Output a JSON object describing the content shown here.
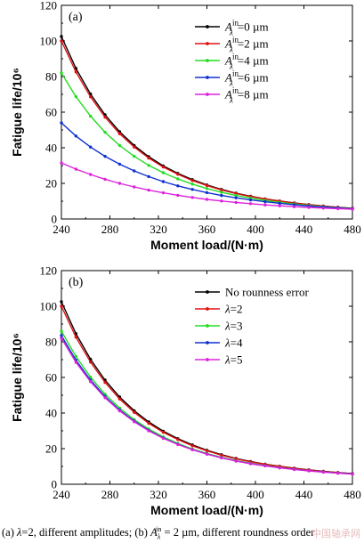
{
  "chart_data": [
    {
      "type": "line",
      "panel_label": "(a)",
      "xlabel": "Moment load/(N·m)",
      "ylabel": "Fatigue life/10⁶",
      "xlim": [
        240,
        480
      ],
      "ylim": [
        0,
        120
      ],
      "xticks": [
        240,
        280,
        320,
        360,
        400,
        440,
        480
      ],
      "yticks": [
        0,
        20,
        40,
        60,
        80,
        100,
        120
      ],
      "grid": false,
      "legend_position": "top-right",
      "x": [
        240,
        252,
        264,
        276,
        288,
        300,
        312,
        324,
        336,
        348,
        360,
        372,
        384,
        396,
        408,
        420,
        432,
        444,
        456,
        468,
        480
      ],
      "series": [
        {
          "name": "Aλin=0 µm",
          "legend_symbol": "A",
          "legend_sub": "λ",
          "legend_sup": "in",
          "legend_value": "=0 µm",
          "color": "#000000",
          "values": [
            102.5,
            84.6,
            70.2,
            58.5,
            49.0,
            41.3,
            35.0,
            29.8,
            25.6,
            22.1,
            19.1,
            16.6,
            14.5,
            12.8,
            11.3,
            10.1,
            9.0,
            8.1,
            7.3,
            6.6,
            6.0
          ]
        },
        {
          "name": "Aλin=2 µm",
          "legend_symbol": "A",
          "legend_sub": "λ",
          "legend_sup": "in",
          "legend_value": "=2 µm",
          "color": "#e01010",
          "values": [
            100.0,
            82.6,
            68.6,
            57.2,
            47.9,
            40.4,
            34.2,
            29.2,
            25.1,
            21.6,
            18.8,
            16.3,
            14.3,
            12.6,
            11.2,
            10.0,
            8.9,
            8.0,
            7.2,
            6.5,
            5.9
          ]
        },
        {
          "name": "Aλin=4 µm",
          "legend_symbol": "A",
          "legend_sub": "λ",
          "legend_sup": "in",
          "legend_value": "=4 µm",
          "color": "#22dd22",
          "values": [
            82.0,
            68.7,
            57.8,
            48.7,
            41.3,
            35.2,
            30.1,
            26.0,
            22.5,
            19.6,
            17.1,
            15.0,
            13.2,
            11.7,
            10.4,
            9.3,
            8.4,
            7.6,
            6.9,
            6.3,
            5.8
          ]
        },
        {
          "name": "Aλin=6 µm",
          "legend_symbol": "A",
          "legend_sub": "λ",
          "legend_sup": "in",
          "legend_value": "=6 µm",
          "color": "#1030d0",
          "values": [
            54.0,
            46.6,
            40.4,
            35.2,
            30.8,
            27.0,
            23.8,
            21.0,
            18.6,
            16.6,
            14.8,
            13.2,
            11.9,
            10.7,
            9.7,
            8.8,
            8.0,
            7.3,
            6.7,
            6.2,
            5.7
          ]
        },
        {
          "name": "Aλin=8 µm",
          "legend_symbol": "A",
          "legend_sub": "λ",
          "legend_sup": "in",
          "legend_value": "=8 µm",
          "color": "#dd22dd",
          "values": [
            31.5,
            28.0,
            25.0,
            22.3,
            20.0,
            18.0,
            16.2,
            14.7,
            13.3,
            12.1,
            11.0,
            10.1,
            9.3,
            8.6,
            7.9,
            7.4,
            6.9,
            6.5,
            6.1,
            5.8,
            5.5
          ]
        }
      ]
    },
    {
      "type": "line",
      "panel_label": "(b)",
      "xlabel": "Moment load/(N·m)",
      "ylabel": "Fatigue life/10⁶",
      "xlim": [
        240,
        480
      ],
      "ylim": [
        0,
        120
      ],
      "xticks": [
        240,
        280,
        320,
        360,
        400,
        440,
        480
      ],
      "yticks": [
        0,
        20,
        40,
        60,
        80,
        100,
        120
      ],
      "grid": false,
      "legend_position": "top-right",
      "x": [
        240,
        252,
        264,
        276,
        288,
        300,
        312,
        324,
        336,
        348,
        360,
        372,
        384,
        396,
        408,
        420,
        432,
        444,
        456,
        468,
        480
      ],
      "series": [
        {
          "name": "No rounness error",
          "legend_symbol": "",
          "legend_sub": "",
          "legend_sup": "",
          "legend_value": "No rounness error",
          "color": "#000000",
          "values": [
            102.5,
            84.6,
            70.2,
            58.5,
            49.0,
            41.3,
            35.0,
            29.8,
            25.6,
            22.1,
            19.1,
            16.6,
            14.5,
            12.8,
            11.3,
            10.1,
            9.0,
            8.1,
            7.3,
            6.6,
            6.0
          ]
        },
        {
          "name": "λ=2",
          "legend_symbol": "λ",
          "legend_sub": "",
          "legend_sup": "",
          "legend_value": "=2",
          "color": "#e01010",
          "values": [
            100.0,
            82.6,
            68.6,
            57.2,
            47.9,
            40.4,
            34.2,
            29.2,
            25.1,
            21.6,
            18.8,
            16.3,
            14.3,
            12.6,
            11.2,
            10.0,
            8.9,
            8.0,
            7.2,
            6.5,
            5.9
          ]
        },
        {
          "name": "λ=3",
          "legend_symbol": "λ",
          "legend_sub": "",
          "legend_sup": "",
          "legend_value": "=3",
          "color": "#22dd22",
          "values": [
            86.0,
            71.8,
            60.2,
            50.6,
            42.8,
            36.3,
            31.0,
            26.6,
            22.9,
            19.8,
            17.3,
            15.1,
            13.3,
            11.8,
            10.5,
            9.4,
            8.4,
            7.6,
            6.9,
            6.3,
            5.8
          ]
        },
        {
          "name": "λ=4",
          "legend_symbol": "λ",
          "legend_sub": "",
          "legend_sup": "",
          "legend_value": "=4",
          "color": "#1030d0",
          "values": [
            83.5,
            69.7,
            58.5,
            49.3,
            41.7,
            35.5,
            30.3,
            26.0,
            22.5,
            19.5,
            17.0,
            14.9,
            13.1,
            11.6,
            10.4,
            9.3,
            8.4,
            7.6,
            6.9,
            6.3,
            5.8
          ]
        },
        {
          "name": "λ=5",
          "legend_symbol": "λ",
          "legend_sub": "",
          "legend_sup": "",
          "legend_value": "=5",
          "color": "#dd22dd",
          "values": [
            82.0,
            68.5,
            57.6,
            48.6,
            41.2,
            35.1,
            30.0,
            25.8,
            22.3,
            19.4,
            16.9,
            14.8,
            13.0,
            11.5,
            10.3,
            9.2,
            8.3,
            7.5,
            6.8,
            6.2,
            5.7
          ]
        }
      ]
    }
  ],
  "caption": {
    "part1": "(a) ",
    "part1_symbol": "λ",
    "part2": "=2, different amplitudes; (b) ",
    "part2_symbol": "A",
    "part2_sub": "λ",
    "part2_sup": "in",
    "part3": " = 2 µm, different roundness order"
  },
  "watermark": "中国轴承网"
}
